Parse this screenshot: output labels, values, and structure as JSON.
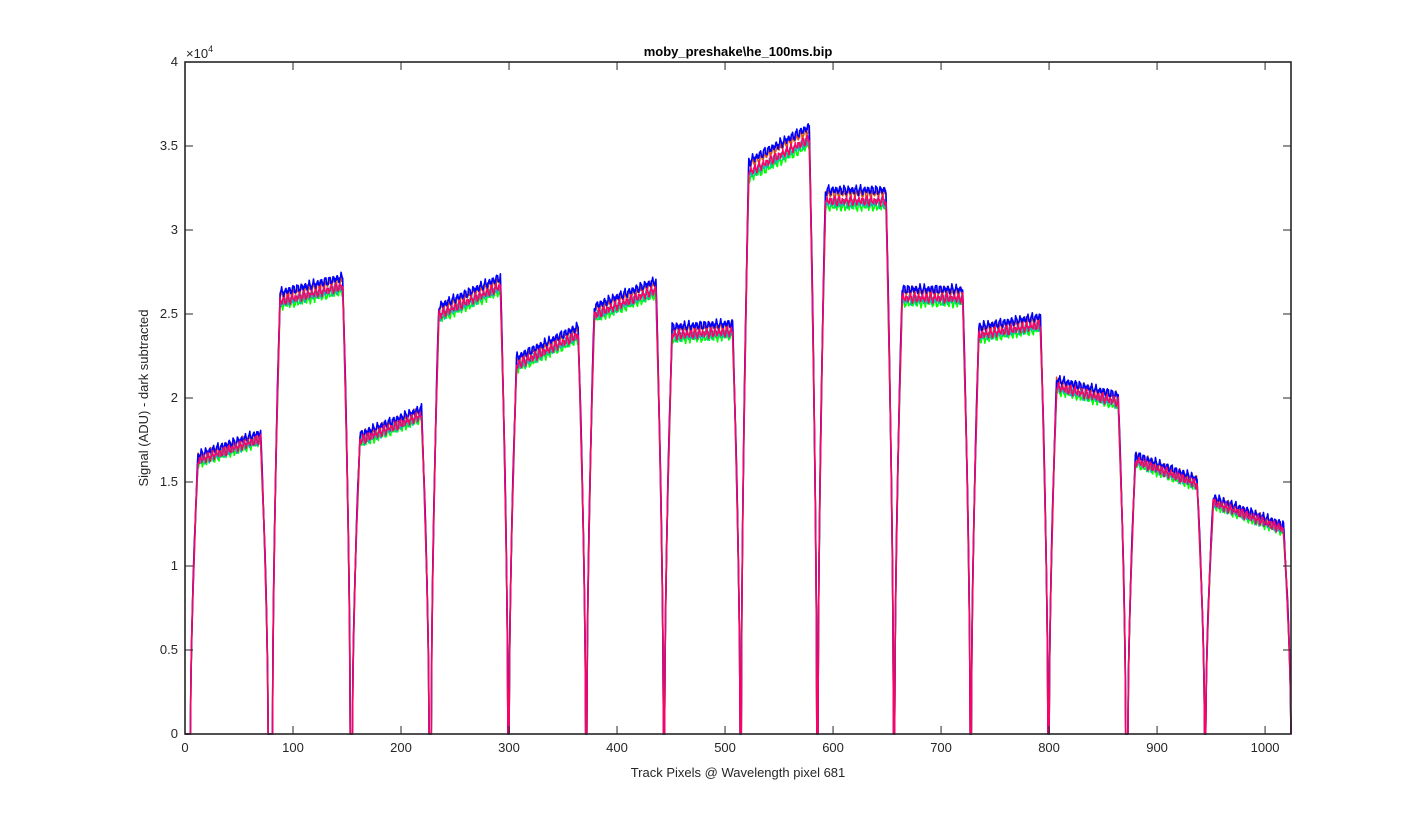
{
  "chart_data": {
    "type": "line",
    "title": "moby_preshake\\he_100ms.bip",
    "xlabel": "Track Pixels @ Wavelength pixel 681",
    "ylabel": "Signal (ADU) - dark subtracted",
    "xlim": [
      0,
      1024
    ],
    "ylim": [
      0,
      40000
    ],
    "y_exponent_label": "×10",
    "y_exponent_power": "4",
    "x_ticks": [
      0,
      100,
      200,
      300,
      400,
      500,
      600,
      700,
      800,
      900,
      1000
    ],
    "x_tick_labels": [
      "0",
      "100",
      "200",
      "300",
      "400",
      "500",
      "600",
      "700",
      "800",
      "900",
      "1000"
    ],
    "y_ticks": [
      0,
      5000,
      10000,
      15000,
      20000,
      25000,
      30000,
      35000,
      40000
    ],
    "y_tick_labels": [
      "0",
      "0.5",
      "1",
      "1.5",
      "2",
      "2.5",
      "3",
      "3.5",
      "4"
    ],
    "grid": false,
    "legend": "none",
    "segments": [
      {
        "x_start": 12,
        "x_end": 70,
        "y_start": 16300,
        "y_end": 17600
      },
      {
        "x_start": 88,
        "x_end": 146,
        "y_start": 25800,
        "y_end": 26700
      },
      {
        "x_start": 162,
        "x_end": 219,
        "y_start": 17500,
        "y_end": 19000
      },
      {
        "x_start": 235,
        "x_end": 292,
        "y_start": 25000,
        "y_end": 26700
      },
      {
        "x_start": 307,
        "x_end": 364,
        "y_start": 22000,
        "y_end": 23800
      },
      {
        "x_start": 379,
        "x_end": 436,
        "y_start": 25000,
        "y_end": 26500
      },
      {
        "x_start": 451,
        "x_end": 507,
        "y_start": 23800,
        "y_end": 24000
      },
      {
        "x_start": 522,
        "x_end": 578,
        "y_start": 33500,
        "y_end": 35500
      },
      {
        "x_start": 593,
        "x_end": 649,
        "y_start": 31800,
        "y_end": 31800
      },
      {
        "x_start": 664,
        "x_end": 720,
        "y_start": 26000,
        "y_end": 26000
      },
      {
        "x_start": 735,
        "x_end": 792,
        "y_start": 23800,
        "y_end": 24400
      },
      {
        "x_start": 807,
        "x_end": 864,
        "y_start": 20700,
        "y_end": 19800
      },
      {
        "x_start": 880,
        "x_end": 937,
        "y_start": 16300,
        "y_end": 14900
      },
      {
        "x_start": 952,
        "x_end": 1017,
        "y_start": 13800,
        "y_end": 12200
      }
    ],
    "series": [
      {
        "color": "#d95319",
        "offset": 300
      },
      {
        "color": "#00ff00",
        "offset": -300
      },
      {
        "color": "#00bfbf",
        "offset": -150
      },
      {
        "color": "#0000ff",
        "offset": 450
      },
      {
        "color": "#ff0066",
        "offset": -50
      }
    ]
  }
}
